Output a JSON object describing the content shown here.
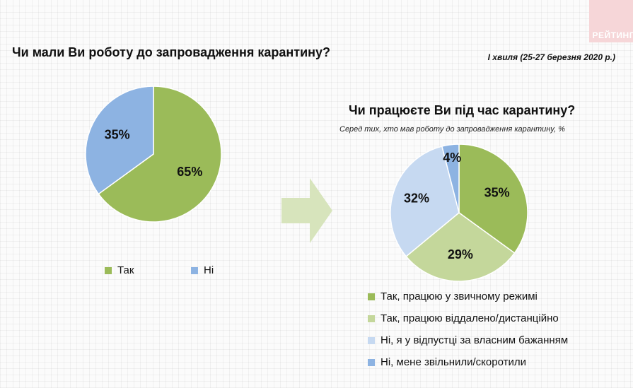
{
  "brand": {
    "text": "РЕЙТИНГ"
  },
  "wave_label": "І хвиля (25-27 березня 2020 р.)",
  "chart_data": [
    {
      "type": "pie",
      "title": "Чи мали Ви роботу до запровадження карантину?",
      "categories": [
        "Так",
        "Ні"
      ],
      "values": [
        65,
        35
      ],
      "labels": [
        "65%",
        "35%"
      ],
      "colors": [
        "#9bbb59",
        "#8db3e2"
      ],
      "legend": "bottom"
    },
    {
      "type": "pie",
      "title": "Чи працюєте Ви під час карантину?",
      "subtitle": "Серед тих, хто мав роботу до запровадження карантину, %",
      "categories": [
        "Так, працюю у звичному режимі",
        "Так, працюю віддалено/дистанційно",
        "Ні, я у відпустці за власним бажанням",
        "Ні, мене звільнили/скоротили"
      ],
      "values": [
        35,
        29,
        32,
        4
      ],
      "labels": [
        "35%",
        "29%",
        "32%",
        "4%"
      ],
      "colors": [
        "#9bbb59",
        "#c4d79b",
        "#c6d9f1",
        "#8db3e2"
      ],
      "legend": "bottom"
    }
  ]
}
